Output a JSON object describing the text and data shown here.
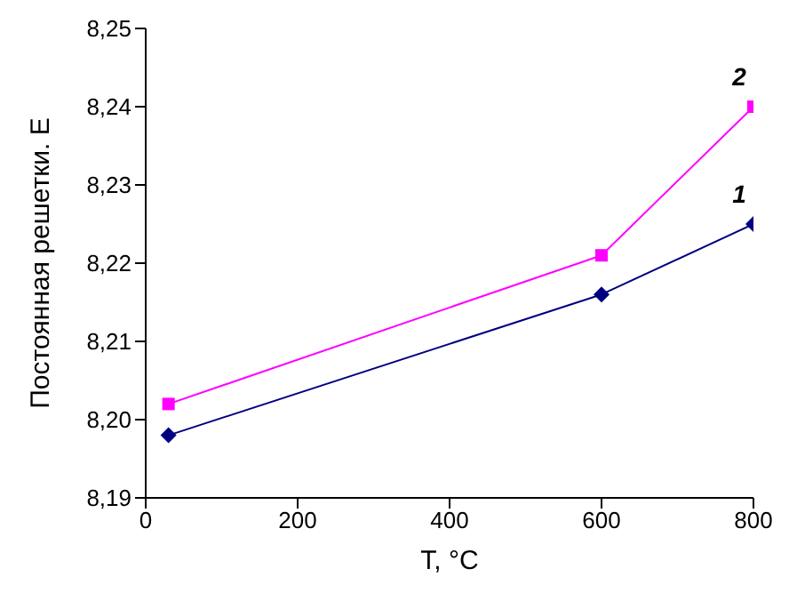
{
  "chart_data": {
    "type": "line",
    "xlabel": "T, °C",
    "ylabel": "Постоянная решетки. Е",
    "xlim": [
      0,
      800
    ],
    "xticks": [
      0,
      200,
      400,
      600,
      800
    ],
    "ylim": [
      8.19,
      8.25
    ],
    "yticks": [
      {
        "value": 8.19,
        "label": "8,19"
      },
      {
        "value": 8.2,
        "label": "8,20"
      },
      {
        "value": 8.21,
        "label": "8,21"
      },
      {
        "value": 8.22,
        "label": "8,22"
      },
      {
        "value": 8.23,
        "label": "8,23"
      },
      {
        "value": 8.24,
        "label": "8,24"
      },
      {
        "value": 8.25,
        "label": "8,25"
      }
    ],
    "grid": false,
    "legend": false,
    "series": [
      {
        "name": "1",
        "color": "#000080",
        "marker": "diamond",
        "x": [
          30,
          600,
          800
        ],
        "values": [
          8.198,
          8.216,
          8.225
        ]
      },
      {
        "name": "2",
        "color": "#ff00ff",
        "marker": "square",
        "x": [
          30,
          600,
          800
        ],
        "values": [
          8.202,
          8.221,
          8.24
        ]
      }
    ]
  }
}
